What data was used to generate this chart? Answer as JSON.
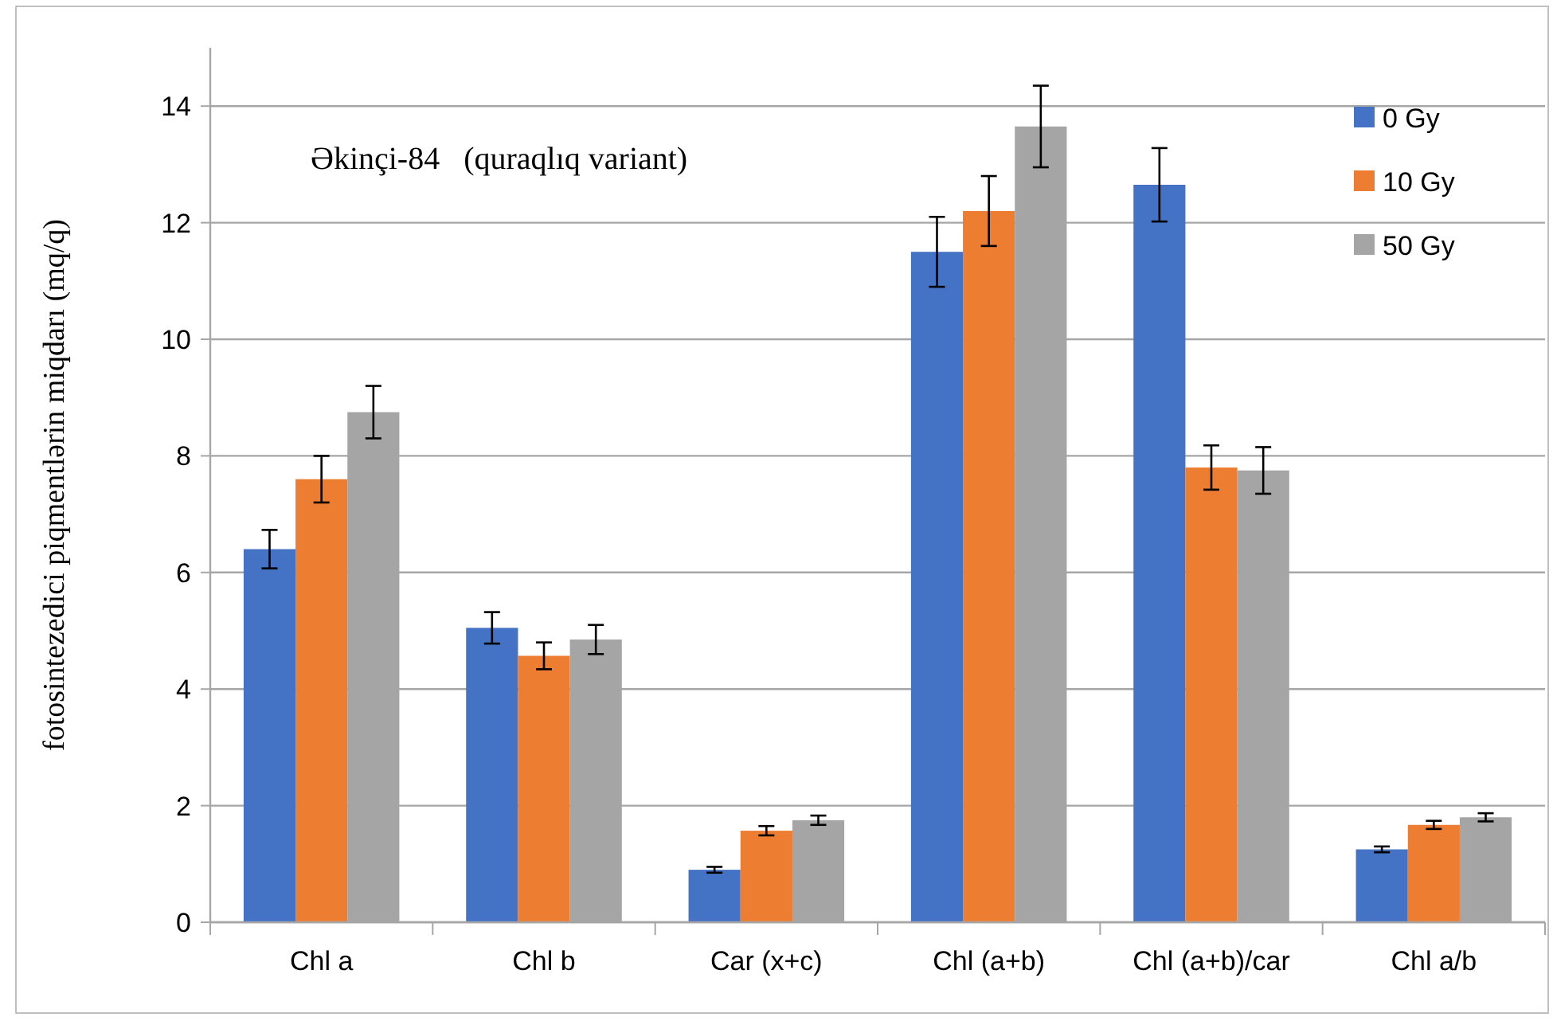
{
  "chart_data": {
    "type": "bar",
    "ylabel": "fotosintezedici piqmentlərin miqdarı (mq/q)",
    "annotations": [
      "Əkinçi-84   (quraqlıq variant)"
    ],
    "categories": [
      "Chl a",
      "Chl b",
      "Car (x+c)",
      "Chl (a+b)",
      "Chl (a+b)/car",
      "Chl a/b"
    ],
    "series": [
      {
        "name": "0 Gy",
        "color": "#4472c4",
        "values": [
          6.4,
          5.05,
          0.9,
          11.5,
          12.65,
          1.25
        ],
        "errors": [
          0.33,
          0.27,
          0.05,
          0.6,
          0.63,
          0.05
        ]
      },
      {
        "name": "10 Gy",
        "color": "#ed7d31",
        "values": [
          7.6,
          4.57,
          1.57,
          12.2,
          7.8,
          1.67
        ],
        "errors": [
          0.4,
          0.23,
          0.08,
          0.6,
          0.38,
          0.07
        ]
      },
      {
        "name": "50 Gy",
        "color": "#a5a5a5",
        "values": [
          8.75,
          4.85,
          1.75,
          13.65,
          7.75,
          1.8
        ],
        "errors": [
          0.45,
          0.25,
          0.08,
          0.7,
          0.4,
          0.07
        ]
      }
    ],
    "ylim": [
      0,
      15
    ],
    "yticks": [
      0,
      2,
      4,
      6,
      8,
      10,
      12,
      14
    ],
    "grid": "y",
    "legend": "top right"
  }
}
